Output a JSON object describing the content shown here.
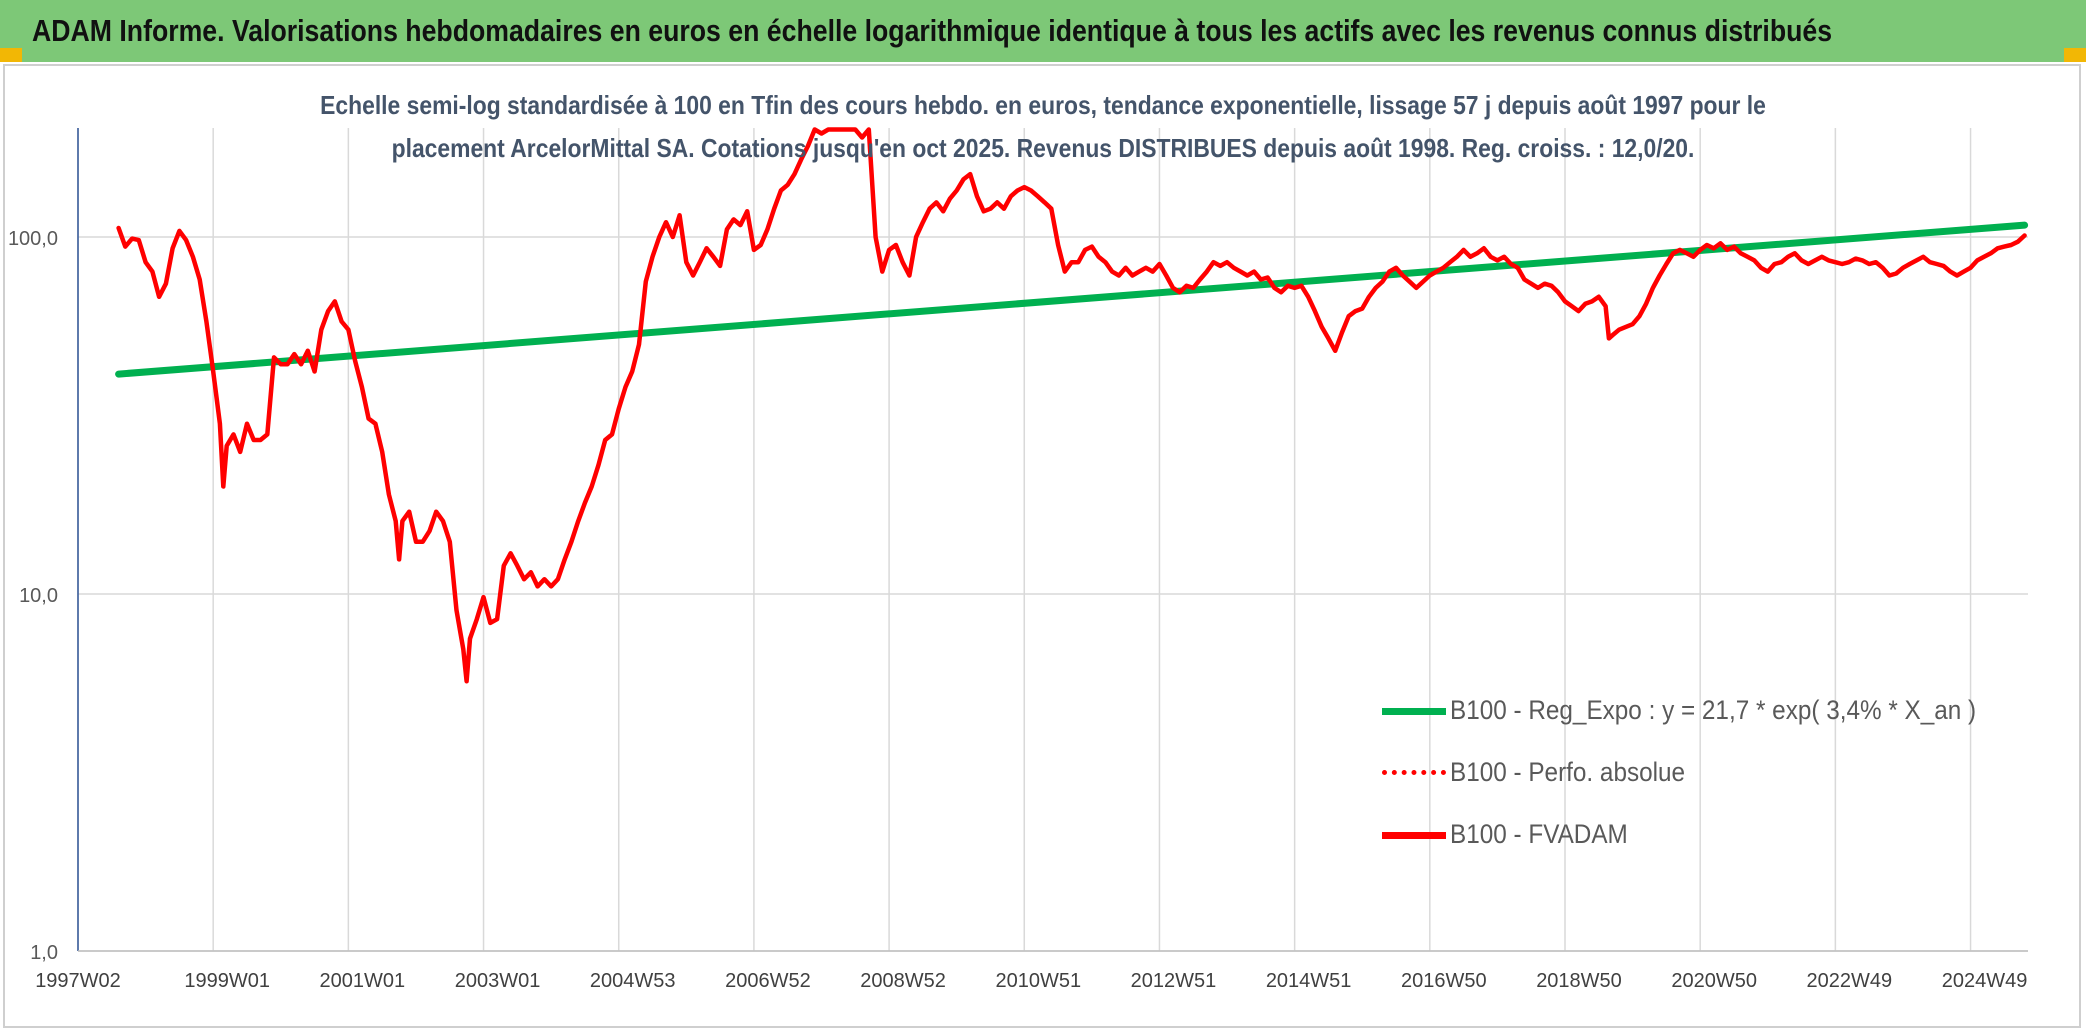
{
  "header": {
    "title": "ADAM Informe. Valorisations hebdomadaires en euros en échelle logarithmique identique à tous les actifs avec les revenus connus distribués"
  },
  "colors": {
    "banner": "#7dc877",
    "accent": "#f2b705",
    "regression": "#00b050",
    "fvadam": "#ff0000",
    "perfo": "#ff0000"
  },
  "chart_data": {
    "type": "line",
    "title_lines": [
      "Echelle semi-log standardisée à 100 en Tfin des cours hebdo. en euros, tendance exponentielle, lissage 57 j depuis août 1997 pour le",
      "placement ArcelorMittal SA. Cotations jusqu'en oct 2025. Revenus DISTRIBUES depuis août 1998. Reg. croiss. : 12,0/20."
    ],
    "y_scale": "log",
    "ylim": [
      1,
      200
    ],
    "y_ticks": [
      {
        "value": 1,
        "label": "1,0"
      },
      {
        "value": 10,
        "label": "10,0"
      },
      {
        "value": 100,
        "label": "100,0"
      }
    ],
    "x_ticks": [
      "1997W02",
      "1999W01",
      "2001W01",
      "2003W01",
      "2004W53",
      "2006W52",
      "2008W52",
      "2010W51",
      "2012W51",
      "2014W51",
      "2016W50",
      "2018W50",
      "2020W50",
      "2022W49",
      "2024W49"
    ],
    "x_tick_years": [
      1997.0,
      1999.0,
      2001.0,
      2003.0,
      2005.0,
      2007.0,
      2009.0,
      2011.0,
      2013.0,
      2015.0,
      2017.0,
      2019.0,
      2021.0,
      2023.0,
      2025.0
    ],
    "xlim": [
      1997.0,
      2025.85
    ],
    "grid": {
      "vertical": true,
      "horizontal": true
    },
    "legend_position": "bottom-right",
    "series": [
      {
        "name": "B100 - Reg_Expo : y = 21,7 * exp( 3,4% *  X_an )",
        "style": "solid-thick",
        "color": "#00b050",
        "points": [
          [
            1997.6,
            41.3
          ],
          [
            2025.8,
            108
          ]
        ]
      },
      {
        "name": "B100 - Perfo. absolue",
        "style": "dotted",
        "color": "#ff0000",
        "points": []
      },
      {
        "name": "B100 - FVADAM",
        "style": "solid-thick",
        "color": "#ff0000",
        "points": [
          [
            1997.6,
            106
          ],
          [
            1997.7,
            94
          ],
          [
            1997.8,
            99
          ],
          [
            1997.9,
            98
          ],
          [
            1998.0,
            85
          ],
          [
            1998.1,
            80
          ],
          [
            1998.2,
            68
          ],
          [
            1998.3,
            74
          ],
          [
            1998.4,
            93
          ],
          [
            1998.5,
            104
          ],
          [
            1998.6,
            98
          ],
          [
            1998.7,
            88
          ],
          [
            1998.8,
            76
          ],
          [
            1998.9,
            58
          ],
          [
            1999.0,
            42
          ],
          [
            1999.1,
            30
          ],
          [
            1999.15,
            20
          ],
          [
            1999.2,
            26
          ],
          [
            1999.3,
            28
          ],
          [
            1999.4,
            25
          ],
          [
            1999.5,
            30
          ],
          [
            1999.6,
            27
          ],
          [
            1999.7,
            27
          ],
          [
            1999.8,
            28
          ],
          [
            1999.9,
            46
          ],
          [
            2000.0,
            44
          ],
          [
            2000.1,
            44
          ],
          [
            2000.2,
            47
          ],
          [
            2000.3,
            44
          ],
          [
            2000.4,
            48
          ],
          [
            2000.5,
            42
          ],
          [
            2000.6,
            55
          ],
          [
            2000.7,
            62
          ],
          [
            2000.8,
            66
          ],
          [
            2000.9,
            58
          ],
          [
            2001.0,
            55
          ],
          [
            2001.1,
            45
          ],
          [
            2001.2,
            38
          ],
          [
            2001.3,
            31
          ],
          [
            2001.4,
            30
          ],
          [
            2001.5,
            25
          ],
          [
            2001.6,
            19
          ],
          [
            2001.7,
            16
          ],
          [
            2001.75,
            12.5
          ],
          [
            2001.8,
            16
          ],
          [
            2001.9,
            17
          ],
          [
            2002.0,
            14
          ],
          [
            2002.1,
            14
          ],
          [
            2002.2,
            15
          ],
          [
            2002.3,
            17
          ],
          [
            2002.4,
            16
          ],
          [
            2002.5,
            14
          ],
          [
            2002.6,
            9
          ],
          [
            2002.7,
            7
          ],
          [
            2002.75,
            5.7
          ],
          [
            2002.8,
            7.5
          ],
          [
            2002.9,
            8.5
          ],
          [
            2003.0,
            9.8
          ],
          [
            2003.1,
            8.3
          ],
          [
            2003.2,
            8.5
          ],
          [
            2003.3,
            12
          ],
          [
            2003.4,
            13
          ],
          [
            2003.5,
            12
          ],
          [
            2003.6,
            11
          ],
          [
            2003.7,
            11.5
          ],
          [
            2003.8,
            10.5
          ],
          [
            2003.9,
            11
          ],
          [
            2004.0,
            10.5
          ],
          [
            2004.1,
            11
          ],
          [
            2004.2,
            12.5
          ],
          [
            2004.3,
            14
          ],
          [
            2004.4,
            16
          ],
          [
            2004.5,
            18
          ],
          [
            2004.6,
            20
          ],
          [
            2004.7,
            23
          ],
          [
            2004.8,
            27
          ],
          [
            2004.9,
            28
          ],
          [
            2005.0,
            33
          ],
          [
            2005.1,
            38
          ],
          [
            2005.2,
            42
          ],
          [
            2005.3,
            50
          ],
          [
            2005.4,
            75
          ],
          [
            2005.5,
            88
          ],
          [
            2005.6,
            100
          ],
          [
            2005.7,
            110
          ],
          [
            2005.8,
            100
          ],
          [
            2005.9,
            115
          ],
          [
            2006.0,
            85
          ],
          [
            2006.1,
            78
          ],
          [
            2006.2,
            85
          ],
          [
            2006.3,
            93
          ],
          [
            2006.4,
            88
          ],
          [
            2006.5,
            83
          ],
          [
            2006.6,
            105
          ],
          [
            2006.7,
            112
          ],
          [
            2006.8,
            108
          ],
          [
            2006.9,
            118
          ],
          [
            2007.0,
            92
          ],
          [
            2007.1,
            95
          ],
          [
            2007.2,
            105
          ],
          [
            2007.3,
            120
          ],
          [
            2007.4,
            135
          ],
          [
            2007.5,
            140
          ],
          [
            2007.6,
            150
          ],
          [
            2007.7,
            165
          ],
          [
            2007.8,
            180
          ],
          [
            2007.9,
            200
          ],
          [
            2008.0,
            195
          ],
          [
            2008.1,
            200
          ],
          [
            2008.2,
            210
          ],
          [
            2008.3,
            215
          ],
          [
            2008.4,
            205
          ],
          [
            2008.5,
            210
          ],
          [
            2008.6,
            190
          ],
          [
            2008.7,
            210
          ],
          [
            2008.8,
            100
          ],
          [
            2008.9,
            80
          ],
          [
            2009.0,
            92
          ],
          [
            2009.1,
            95
          ],
          [
            2009.2,
            85
          ],
          [
            2009.3,
            78
          ],
          [
            2009.4,
            100
          ],
          [
            2009.5,
            110
          ],
          [
            2009.6,
            120
          ],
          [
            2009.7,
            125
          ],
          [
            2009.8,
            118
          ],
          [
            2009.9,
            128
          ],
          [
            2010.0,
            135
          ],
          [
            2010.1,
            145
          ],
          [
            2010.2,
            150
          ],
          [
            2010.3,
            130
          ],
          [
            2010.4,
            118
          ],
          [
            2010.5,
            120
          ],
          [
            2010.6,
            125
          ],
          [
            2010.7,
            120
          ],
          [
            2010.8,
            130
          ],
          [
            2010.9,
            135
          ],
          [
            2011.0,
            138
          ],
          [
            2011.1,
            135
          ],
          [
            2011.2,
            130
          ],
          [
            2011.3,
            125
          ],
          [
            2011.4,
            120
          ],
          [
            2011.5,
            95
          ],
          [
            2011.6,
            80
          ],
          [
            2011.7,
            85
          ],
          [
            2011.8,
            85
          ],
          [
            2011.9,
            92
          ],
          [
            2012.0,
            94
          ],
          [
            2012.1,
            88
          ],
          [
            2012.2,
            85
          ],
          [
            2012.3,
            80
          ],
          [
            2012.4,
            78
          ],
          [
            2012.5,
            82
          ],
          [
            2012.6,
            78
          ],
          [
            2012.7,
            80
          ],
          [
            2012.8,
            82
          ],
          [
            2012.9,
            80
          ],
          [
            2013.0,
            84
          ],
          [
            2013.1,
            78
          ],
          [
            2013.2,
            72
          ],
          [
            2013.3,
            70
          ],
          [
            2013.4,
            73
          ],
          [
            2013.5,
            72
          ],
          [
            2013.6,
            76
          ],
          [
            2013.7,
            80
          ],
          [
            2013.8,
            85
          ],
          [
            2013.9,
            83
          ],
          [
            2014.0,
            85
          ],
          [
            2014.1,
            82
          ],
          [
            2014.2,
            80
          ],
          [
            2014.3,
            78
          ],
          [
            2014.4,
            80
          ],
          [
            2014.5,
            76
          ],
          [
            2014.6,
            77
          ],
          [
            2014.7,
            72
          ],
          [
            2014.8,
            70
          ],
          [
            2014.9,
            73
          ],
          [
            2015.0,
            72
          ],
          [
            2015.1,
            73
          ],
          [
            2015.2,
            68
          ],
          [
            2015.3,
            62
          ],
          [
            2015.4,
            56
          ],
          [
            2015.5,
            52
          ],
          [
            2015.6,
            48
          ],
          [
            2015.7,
            54
          ],
          [
            2015.8,
            60
          ],
          [
            2015.9,
            62
          ],
          [
            2016.0,
            63
          ],
          [
            2016.1,
            68
          ],
          [
            2016.2,
            72
          ],
          [
            2016.3,
            75
          ],
          [
            2016.4,
            80
          ],
          [
            2016.5,
            82
          ],
          [
            2016.6,
            78
          ],
          [
            2016.7,
            75
          ],
          [
            2016.8,
            72
          ],
          [
            2016.9,
            75
          ],
          [
            2017.0,
            78
          ],
          [
            2017.1,
            80
          ],
          [
            2017.2,
            82
          ],
          [
            2017.3,
            85
          ],
          [
            2017.4,
            88
          ],
          [
            2017.5,
            92
          ],
          [
            2017.6,
            88
          ],
          [
            2017.7,
            90
          ],
          [
            2017.8,
            93
          ],
          [
            2017.9,
            88
          ],
          [
            2018.0,
            86
          ],
          [
            2018.1,
            88
          ],
          [
            2018.2,
            84
          ],
          [
            2018.3,
            82
          ],
          [
            2018.4,
            76
          ],
          [
            2018.5,
            74
          ],
          [
            2018.6,
            72
          ],
          [
            2018.7,
            74
          ],
          [
            2018.8,
            73
          ],
          [
            2018.9,
            70
          ],
          [
            2019.0,
            66
          ],
          [
            2019.1,
            64
          ],
          [
            2019.2,
            62
          ],
          [
            2019.3,
            65
          ],
          [
            2019.4,
            66
          ],
          [
            2019.5,
            68
          ],
          [
            2019.6,
            64
          ],
          [
            2019.65,
            52
          ],
          [
            2019.7,
            53
          ],
          [
            2019.8,
            55
          ],
          [
            2019.9,
            56
          ],
          [
            2020.0,
            57
          ],
          [
            2020.1,
            60
          ],
          [
            2020.2,
            65
          ],
          [
            2020.3,
            72
          ],
          [
            2020.4,
            78
          ],
          [
            2020.5,
            84
          ],
          [
            2020.6,
            90
          ],
          [
            2020.7,
            92
          ],
          [
            2020.8,
            90
          ],
          [
            2020.9,
            88
          ],
          [
            2021.0,
            92
          ],
          [
            2021.1,
            95
          ],
          [
            2021.2,
            93
          ],
          [
            2021.3,
            96
          ],
          [
            2021.4,
            92
          ],
          [
            2021.5,
            94
          ],
          [
            2021.6,
            90
          ],
          [
            2021.7,
            88
          ],
          [
            2021.8,
            86
          ],
          [
            2021.9,
            82
          ],
          [
            2022.0,
            80
          ],
          [
            2022.1,
            84
          ],
          [
            2022.2,
            85
          ],
          [
            2022.3,
            88
          ],
          [
            2022.4,
            90
          ],
          [
            2022.5,
            86
          ],
          [
            2022.6,
            84
          ],
          [
            2022.7,
            86
          ],
          [
            2022.8,
            88
          ],
          [
            2022.9,
            86
          ],
          [
            2023.0,
            85
          ],
          [
            2023.1,
            84
          ],
          [
            2023.2,
            85
          ],
          [
            2023.3,
            87
          ],
          [
            2023.4,
            86
          ],
          [
            2023.5,
            84
          ],
          [
            2023.6,
            85
          ],
          [
            2023.7,
            82
          ],
          [
            2023.8,
            78
          ],
          [
            2023.9,
            79
          ],
          [
            2024.0,
            82
          ],
          [
            2024.1,
            84
          ],
          [
            2024.2,
            86
          ],
          [
            2024.3,
            88
          ],
          [
            2024.4,
            85
          ],
          [
            2024.5,
            84
          ],
          [
            2024.6,
            83
          ],
          [
            2024.7,
            80
          ],
          [
            2024.8,
            78
          ],
          [
            2024.9,
            80
          ],
          [
            2025.0,
            82
          ],
          [
            2025.1,
            86
          ],
          [
            2025.2,
            88
          ],
          [
            2025.3,
            90
          ],
          [
            2025.4,
            93
          ],
          [
            2025.5,
            94
          ],
          [
            2025.6,
            95
          ],
          [
            2025.7,
            97
          ],
          [
            2025.8,
            101
          ]
        ]
      }
    ]
  }
}
